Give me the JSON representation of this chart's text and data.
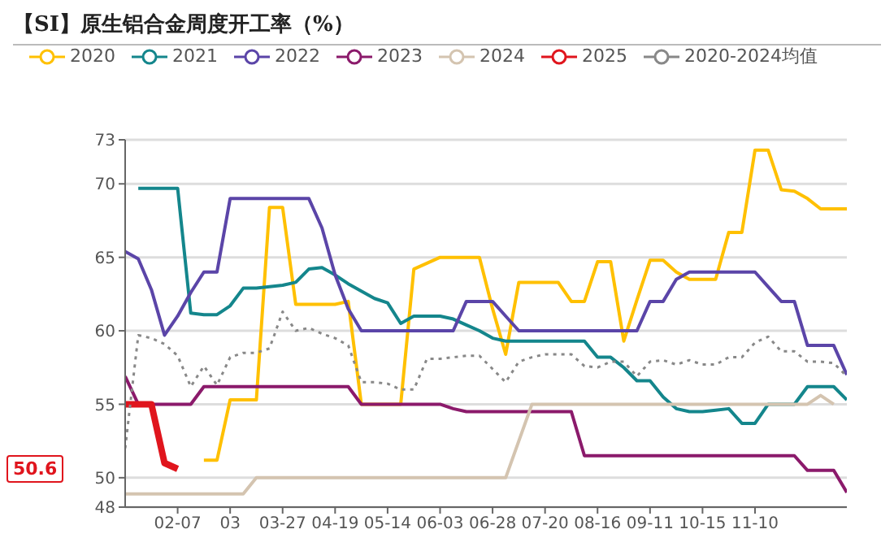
{
  "chart_data": {
    "type": "line",
    "title": "【SI】原生铝合金周度开工率（%）",
    "categories": [
      null,
      null,
      null,
      null,
      "02-07",
      null,
      null,
      null,
      "03",
      null,
      null,
      null,
      "03-27",
      null,
      null,
      null,
      "04-19",
      null,
      null,
      null,
      "05-14",
      null,
      null,
      null,
      "06-03",
      null,
      null,
      null,
      "06-28",
      null,
      null,
      null,
      "07-20",
      null,
      null,
      null,
      "08-16",
      null,
      null,
      null,
      "09-11",
      null,
      null,
      null,
      "10-15",
      null,
      null,
      null,
      "11-10",
      null,
      null,
      null,
      null,
      null,
      null,
      null
    ],
    "series": [
      {
        "name": "2020",
        "color": "#ffc000",
        "values": [
          null,
          null,
          null,
          null,
          null,
          null,
          51.2,
          51.2,
          55.3,
          55.3,
          55.3,
          68.4,
          68.4,
          61.8,
          61.8,
          61.8,
          61.8,
          62,
          55,
          55,
          55,
          55,
          64.2,
          64.6,
          65,
          65,
          65,
          65,
          61.5,
          58.4,
          63.3,
          63.3,
          63.3,
          63.3,
          62,
          62,
          64.7,
          64.7,
          59.3,
          62.1,
          64.8,
          64.8,
          64,
          63.5,
          63.5,
          63.5,
          66.7,
          66.7,
          72.3,
          72.3,
          69.6,
          69.5,
          69,
          68.3,
          68.3,
          68.3
        ]
      },
      {
        "name": "2021",
        "color": "#14868c",
        "values": [
          null,
          69.7,
          69.7,
          69.7,
          69.7,
          61.2,
          61.1,
          61.1,
          61.7,
          62.9,
          62.9,
          63,
          63.1,
          63.3,
          64.2,
          64.3,
          63.8,
          63.2,
          62.7,
          62.2,
          61.9,
          60.5,
          61,
          61,
          61,
          60.8,
          60.4,
          60,
          59.5,
          59.3,
          59.3,
          59.3,
          59.3,
          59.3,
          59.3,
          59.3,
          58.2,
          58.2,
          57.5,
          56.6,
          56.6,
          55.5,
          54.7,
          54.5,
          54.5,
          54.6,
          54.7,
          53.7,
          53.7,
          55,
          55,
          55,
          56.2,
          56.2,
          56.2,
          55.3
        ]
      },
      {
        "name": "2022",
        "color": "#5b45a8",
        "values": [
          65.4,
          64.9,
          62.8,
          59.7,
          61,
          62.6,
          64,
          64,
          69,
          69,
          69,
          69,
          69,
          69,
          69,
          67,
          63.8,
          61.5,
          60,
          60,
          60,
          60,
          60,
          60,
          60,
          60,
          62,
          62,
          62,
          61,
          60,
          60,
          60,
          60,
          60,
          60,
          60,
          60,
          60,
          60,
          62,
          62,
          63.5,
          64,
          64,
          64,
          64,
          64,
          64,
          63,
          62,
          62,
          59,
          59,
          59,
          57
        ]
      },
      {
        "name": "2023",
        "color": "#8b1a6b",
        "values": [
          56.9,
          55,
          55,
          55,
          55,
          55,
          56.2,
          56.2,
          56.2,
          56.2,
          56.2,
          56.2,
          56.2,
          56.2,
          56.2,
          56.2,
          56.2,
          56.2,
          55,
          55,
          55,
          55,
          55,
          55,
          55,
          54.7,
          54.5,
          54.5,
          54.5,
          54.5,
          54.5,
          54.5,
          54.5,
          54.5,
          54.5,
          51.5,
          51.5,
          51.5,
          51.5,
          51.5,
          51.5,
          51.5,
          51.5,
          51.5,
          51.5,
          51.5,
          51.5,
          51.5,
          51.5,
          51.5,
          51.5,
          51.5,
          50.5,
          50.5,
          50.5,
          49
        ]
      },
      {
        "name": "2024",
        "color": "#d4c4b0",
        "values": [
          48.9,
          48.9,
          48.9,
          48.9,
          48.9,
          48.9,
          48.9,
          48.9,
          48.9,
          48.9,
          50,
          50,
          50,
          50,
          50,
          50,
          50,
          50,
          50,
          50,
          50,
          50,
          50,
          50,
          50,
          50,
          50,
          50,
          50,
          50,
          52.5,
          55,
          55,
          55,
          55,
          55,
          55,
          55,
          55,
          55,
          55,
          55,
          55,
          55,
          55,
          55,
          55,
          55,
          55,
          55,
          55,
          55,
          55,
          55.6,
          55,
          null
        ]
      },
      {
        "name": "2025",
        "color": "#e0151d",
        "values": [
          55,
          55,
          55,
          51,
          50.6,
          null,
          null,
          null,
          null,
          null,
          null,
          null,
          null,
          null,
          null,
          null,
          null,
          null,
          null,
          null,
          null,
          null,
          null,
          null,
          null,
          null,
          null,
          null,
          null,
          null,
          null,
          null,
          null,
          null,
          null,
          null,
          null,
          null,
          null,
          null,
          null,
          null,
          null,
          null,
          null,
          null,
          null,
          null,
          null,
          null,
          null,
          null,
          null,
          null,
          null,
          null
        ]
      },
      {
        "name": "2020-2024均值",
        "color": "#888888",
        "line_style": "dotted",
        "values": [
          52,
          59.7,
          59.5,
          59.1,
          58.3,
          56.2,
          57.6,
          56.3,
          58.2,
          58.5,
          58.5,
          58.8,
          61.3,
          60,
          60.2,
          59.8,
          59.5,
          59,
          56.5,
          56.5,
          56.4,
          56,
          56,
          58.1,
          58.1,
          58.2,
          58.3,
          58.3,
          57.4,
          56.5,
          57.9,
          58.2,
          58.4,
          58.4,
          58.4,
          57.6,
          57.5,
          57.9,
          57.9,
          56.9,
          57.9,
          58,
          57.7,
          58,
          57.7,
          57.7,
          58.2,
          58.2,
          59.2,
          59.6,
          58.6,
          58.6,
          57.9,
          57.9,
          57.8,
          56.9
        ]
      }
    ],
    "ylim": [
      48,
      73
    ],
    "yticks": [
      48,
      50,
      55,
      60,
      65,
      70,
      73
    ],
    "grid": "y",
    "legend": "top",
    "line_style": "solid",
    "marker": "none",
    "annotations": [
      "50.6"
    ]
  }
}
